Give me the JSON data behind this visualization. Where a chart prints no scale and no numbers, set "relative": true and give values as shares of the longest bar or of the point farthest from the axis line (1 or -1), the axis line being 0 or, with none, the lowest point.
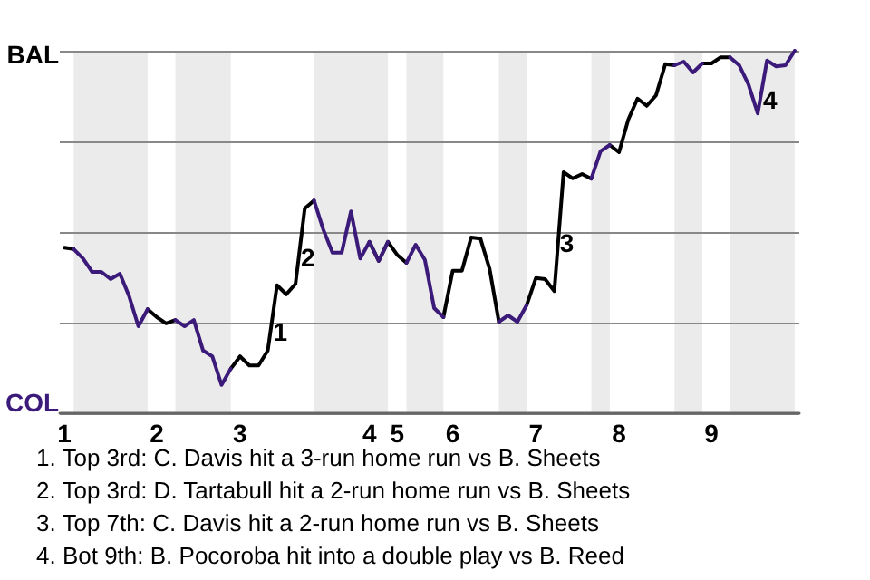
{
  "chart_data": {
    "type": "line",
    "relative": true,
    "categories": [
      "1",
      null,
      null,
      null,
      null,
      null,
      null,
      null,
      null,
      null,
      "2",
      null,
      null,
      null,
      null,
      null,
      null,
      null,
      null,
      "3",
      null,
      null,
      null,
      null,
      null,
      null,
      null,
      null,
      null,
      null,
      null,
      null,
      null,
      "4",
      null,
      null,
      "5",
      null,
      null,
      null,
      null,
      null,
      "6",
      null,
      null,
      null,
      null,
      null,
      null,
      null,
      null,
      "7",
      null,
      null,
      null,
      null,
      null,
      null,
      null,
      null,
      "8",
      null,
      null,
      null,
      null,
      null,
      null,
      null,
      null,
      null,
      "9",
      null,
      null,
      null,
      null,
      null,
      null,
      null,
      null,
      null
    ],
    "grid": "y",
    "marker": "none",
    "line_style": "solid",
    "series": [
      {
        "name": "BAL",
        "color": "#000000",
        "values": [
          0.457,
          0.453,
          null,
          null,
          null,
          null,
          null,
          null,
          null,
          0.287,
          0.265,
          0.248,
          0.257,
          null,
          null,
          null,
          null,
          null,
          0.123,
          0.157,
          0.132,
          0.132,
          0.173,
          0.353,
          0.328,
          0.357,
          0.565,
          0.587,
          null,
          null,
          null,
          null,
          null,
          0.473,
          0.42,
          0.473,
          0.437,
          0.415,
          null,
          null,
          null,
          0.265,
          0.393,
          0.393,
          0.485,
          0.482,
          0.398,
          0.252,
          null,
          null,
          0.298,
          0.373,
          0.37,
          0.337,
          0.665,
          0.648,
          0.66,
          0.647,
          null,
          0.74,
          0.72,
          0.81,
          0.868,
          0.848,
          0.877,
          0.963,
          0.96,
          null,
          null,
          0.965,
          0.965,
          0.982,
          0.982,
          null,
          null,
          null,
          null,
          null,
          null,
          null
        ]
      },
      {
        "name": "COL",
        "color": "#3b1a7a",
        "values": [
          null,
          0.453,
          0.427,
          0.39,
          0.39,
          0.37,
          0.385,
          0.323,
          0.24,
          0.287,
          null,
          null,
          0.257,
          0.24,
          0.257,
          0.173,
          0.157,
          0.078,
          0.123,
          null,
          null,
          null,
          null,
          null,
          null,
          null,
          null,
          0.587,
          0.507,
          0.443,
          0.443,
          0.557,
          0.427,
          0.473,
          0.42,
          0.473,
          null,
          0.415,
          0.465,
          0.423,
          0.29,
          0.265,
          null,
          null,
          null,
          null,
          null,
          0.252,
          0.27,
          0.252,
          0.298,
          null,
          null,
          null,
          null,
          null,
          null,
          0.647,
          0.723,
          0.74,
          null,
          null,
          null,
          null,
          null,
          null,
          0.96,
          0.97,
          0.94,
          0.965,
          null,
          null,
          0.982,
          0.96,
          0.907,
          0.827,
          0.973,
          0.957,
          0.96,
          1
        ]
      }
    ],
    "annotations": [
      {
        "text": "1",
        "y": 0.225
      },
      {
        "text": "2",
        "y": 0.43
      },
      {
        "text": "3",
        "y": 0.47
      },
      {
        "text": "4",
        "y": 0.865
      },
      "1. Top 3rd: C. Davis hit a 3-run home run vs B. Sheets",
      "2. Top 3rd: D. Tartabull hit a 2-run home run vs B. Sheets",
      "3. Top 7th: C. Davis hit a 2-run home run vs B. Sheets",
      "4. Bot 9th: B. Pocoroba hit into a double play vs B. Reed"
    ]
  }
}
